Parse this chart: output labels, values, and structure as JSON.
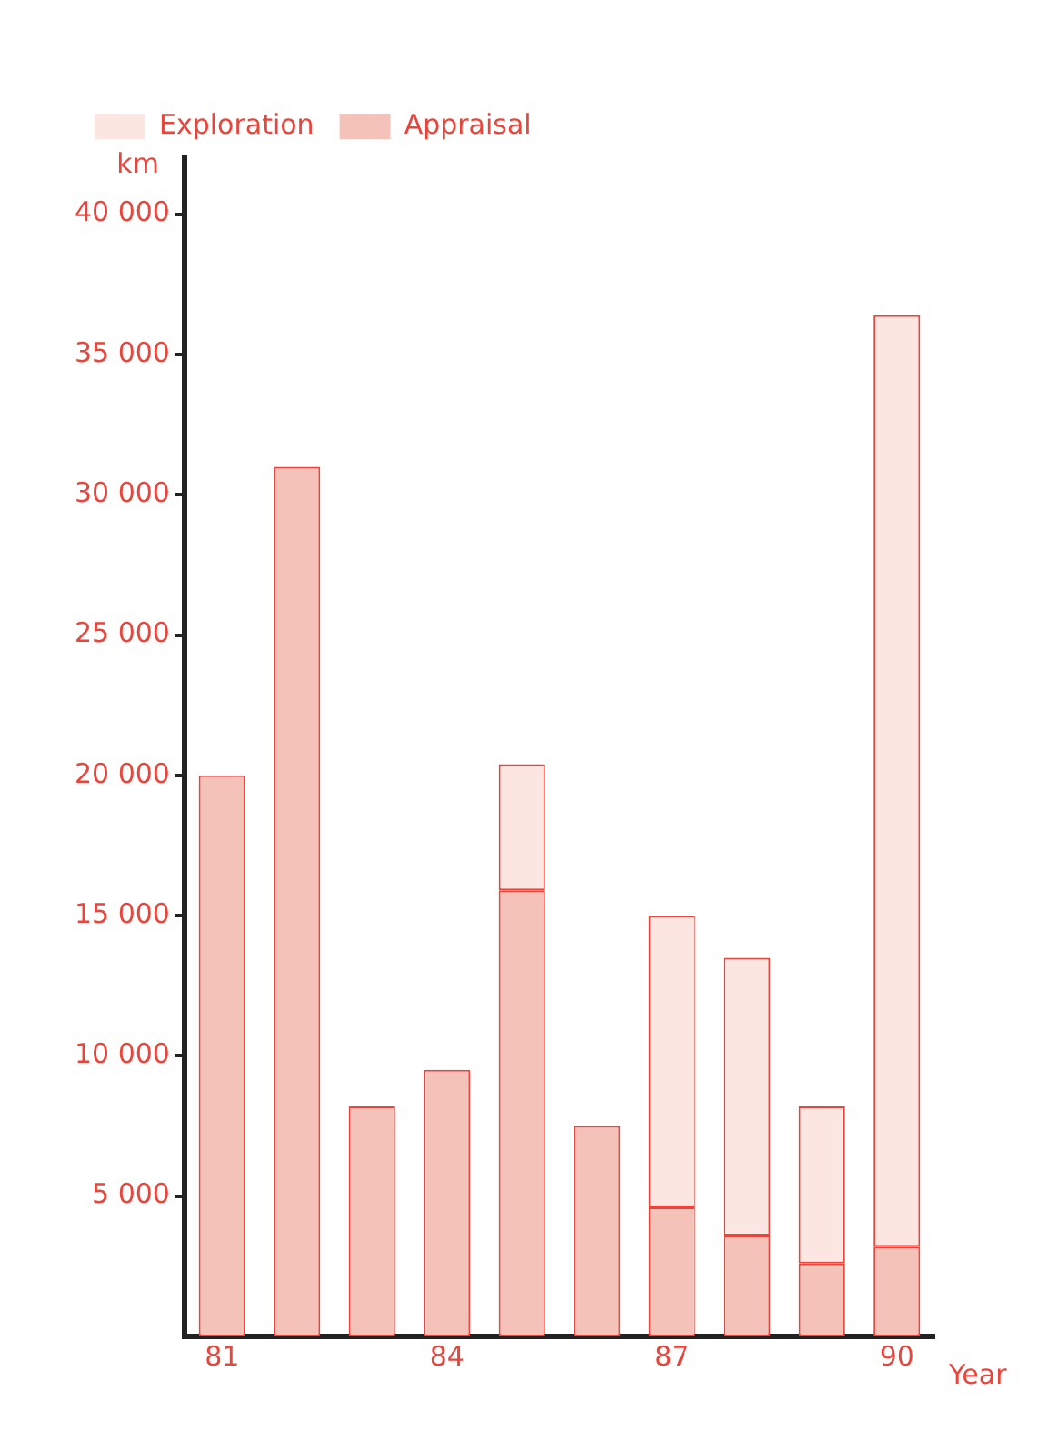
{
  "chart_data": {
    "type": "bar",
    "stacked": true,
    "ylabel": "km",
    "xlabel": "Year",
    "legend": "top left",
    "grid": false,
    "categories": [
      "81",
      null,
      null,
      "84",
      null,
      null,
      "87",
      null,
      null,
      "90"
    ],
    "series": [
      {
        "name": "Appraisal",
        "color": "#f4c2b8",
        "values": [
          20000,
          31000,
          8200,
          9500,
          15900,
          7500,
          4600,
          3600,
          2600,
          3200
        ]
      },
      {
        "name": "Exploration",
        "color": "#fce6e1",
        "values": [
          null,
          null,
          null,
          null,
          4500,
          null,
          10400,
          9900,
          5600,
          33200
        ]
      }
    ],
    "ylim": [
      0,
      42000
    ],
    "yticks": [
      {
        "value": 5000,
        "label": "5 000"
      },
      {
        "value": 10000,
        "label": "10 000"
      },
      {
        "value": 15000,
        "label": "15 000"
      },
      {
        "value": 20000,
        "label": "20 000"
      },
      {
        "value": 25000,
        "label": "25 000"
      },
      {
        "value": 30000,
        "label": "30 000"
      },
      {
        "value": 35000,
        "label": "35 000"
      },
      {
        "value": 40000,
        "label": "40 000"
      }
    ]
  }
}
